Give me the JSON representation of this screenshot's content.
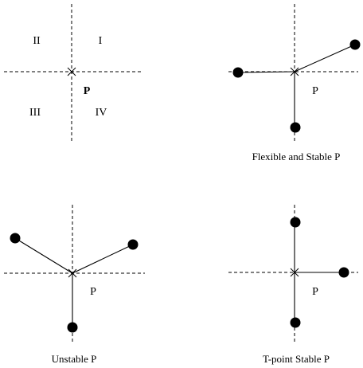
{
  "quadrant_labels": {
    "q1": "I",
    "q2": "II",
    "q3": "III",
    "q4": "IV"
  },
  "point_label": "P",
  "panels": {
    "flexible": {
      "point_label": "P",
      "caption": "Flexible and Stable P"
    },
    "unstable": {
      "point_label": "P",
      "caption": "Unstable P"
    },
    "tpoint": {
      "point_label": "P",
      "caption": "T-point Stable P"
    }
  }
}
